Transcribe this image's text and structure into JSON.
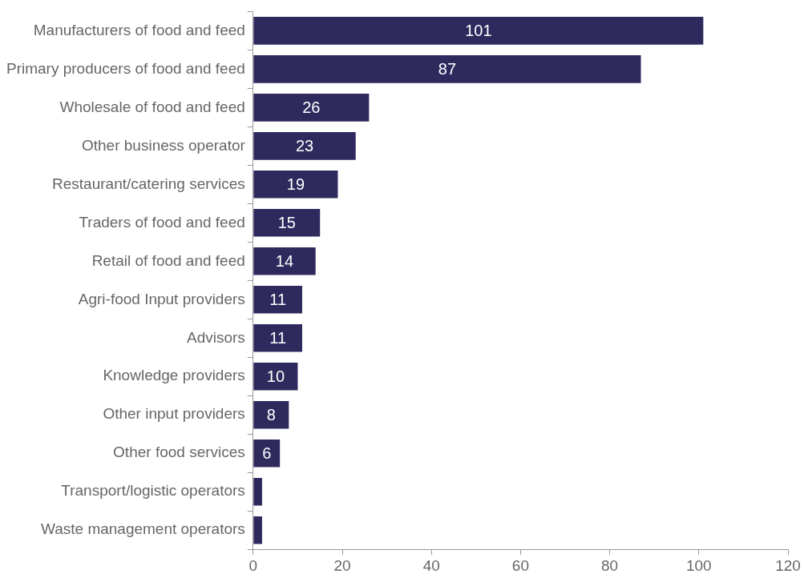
{
  "chart_data": {
    "type": "bar",
    "orientation": "horizontal",
    "categories": [
      "Manufacturers of food and feed",
      "Primary producers of food and feed",
      "Wholesale of food and feed",
      "Other business operator",
      "Restaurant/catering services",
      "Traders of food and feed",
      "Retail of food and feed",
      "Agri-food Input providers",
      "Advisors",
      "Knowledge providers",
      "Other input providers",
      "Other food services",
      "Transport/logistic operators",
      "Waste management operators"
    ],
    "values": [
      101,
      87,
      26,
      23,
      19,
      15,
      14,
      11,
      11,
      10,
      8,
      6,
      2,
      2
    ],
    "value_labels": [
      "101",
      "87",
      "26",
      "23",
      "19",
      "15",
      "14",
      "11",
      "11",
      "10",
      "8",
      "6",
      null,
      null
    ],
    "color": "#2e2a5e",
    "xlim": [
      0,
      120
    ],
    "xticks": [
      0,
      20,
      40,
      60,
      80,
      100,
      120
    ],
    "grid": false,
    "legend": false
  }
}
